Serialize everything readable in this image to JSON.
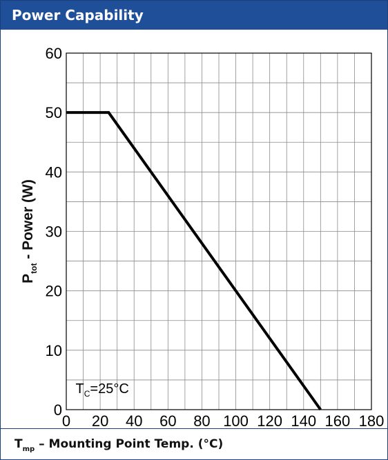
{
  "header": {
    "title": "Power Capability"
  },
  "footer": {
    "xlabel_main": "T",
    "xlabel_sub": "mp",
    "xlabel_rest": " – Mounting Point Temp.  (°C)"
  },
  "chart_data": {
    "type": "line",
    "x": [
      0,
      25,
      150
    ],
    "series": [
      {
        "values": [
          50,
          50,
          0
        ]
      }
    ],
    "xlim": [
      0,
      180
    ],
    "ylim": [
      0,
      60
    ],
    "xticks": [
      0,
      20,
      40,
      60,
      80,
      100,
      120,
      140,
      160,
      180
    ],
    "yticks": [
      0,
      10,
      20,
      30,
      40,
      50,
      60
    ],
    "ylabel": {
      "main": "P",
      "sub": "tot",
      "rest": " - Power (W)"
    },
    "xlabel": "T_mp – Mounting Point Temp.  (°C)",
    "grid": true,
    "minor_grid": {
      "x_step": 10,
      "y_step": 5
    },
    "line_color": "#000000",
    "annotation": {
      "main": "T",
      "sub": "C",
      "rest": "=25°C"
    }
  }
}
